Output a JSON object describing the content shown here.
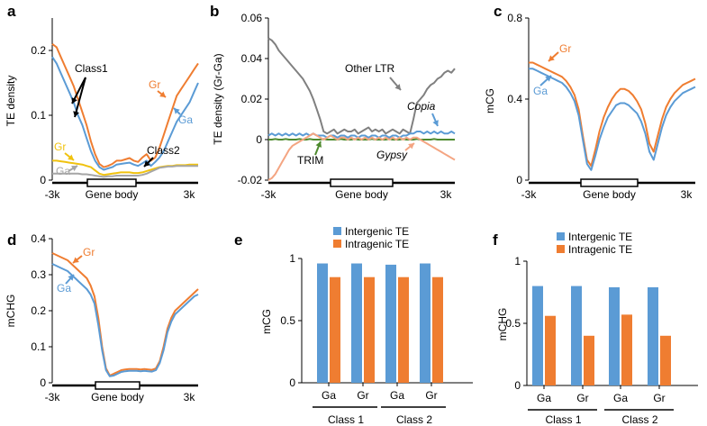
{
  "colors": {
    "gr": "#ef7d31",
    "ga": "#5b9bd5",
    "gr_class2": "#f0c20f",
    "ga_class2": "#a6a6a6",
    "other_ltr": "#808080",
    "copia": "#5b9bd5",
    "trim": "#4e8a2e",
    "gypsy": "#f4a582",
    "intergenic": "#5b9bd5",
    "intragenic": "#ef7d31",
    "axis": "#000000"
  },
  "chart_data": [
    {
      "panel": "a",
      "type": "line",
      "ylabel": "TE density",
      "ylim": [
        0,
        0.25
      ],
      "yticks": [
        "0",
        "0.1",
        "0.2"
      ],
      "ytick_values": [
        0,
        0.1,
        0.2
      ],
      "xlabel_left": "-3k",
      "xlabel_center": "Gene body",
      "xlabel_right": "3k",
      "annotations": [
        "Class1",
        "Class2",
        "Gr",
        "Ga",
        "Gr",
        "Ga"
      ],
      "series": [
        {
          "color_key": "gr",
          "values": [
            0.21,
            0.205,
            0.19,
            0.175,
            0.16,
            0.145,
            0.125,
            0.105,
            0.085,
            0.06,
            0.04,
            0.025,
            0.02,
            0.022,
            0.025,
            0.03,
            0.03,
            0.032,
            0.034,
            0.03,
            0.028,
            0.035,
            0.04,
            0.03,
            0.035,
            0.05,
            0.07,
            0.09,
            0.11,
            0.13,
            0.14,
            0.15,
            0.16,
            0.17,
            0.18
          ]
        },
        {
          "color_key": "ga",
          "values": [
            0.19,
            0.18,
            0.165,
            0.15,
            0.135,
            0.12,
            0.1,
            0.085,
            0.065,
            0.045,
            0.03,
            0.02,
            0.016,
            0.018,
            0.02,
            0.024,
            0.025,
            0.026,
            0.027,
            0.024,
            0.022,
            0.026,
            0.03,
            0.022,
            0.028,
            0.035,
            0.045,
            0.06,
            0.075,
            0.09,
            0.1,
            0.11,
            0.12,
            0.135,
            0.15
          ]
        },
        {
          "color_key": "gr_class2",
          "values": [
            0.03,
            0.03,
            0.029,
            0.028,
            0.027,
            0.026,
            0.025,
            0.024,
            0.022,
            0.02,
            0.015,
            0.01,
            0.008,
            0.009,
            0.01,
            0.011,
            0.012,
            0.012,
            0.012,
            0.011,
            0.011,
            0.012,
            0.014,
            0.016,
            0.018,
            0.02,
            0.021,
            0.022,
            0.022,
            0.023,
            0.023,
            0.023,
            0.024,
            0.024,
            0.024
          ]
        },
        {
          "color_key": "ga_class2",
          "values": [
            0.01,
            0.01,
            0.01,
            0.01,
            0.01,
            0.01,
            0.01,
            0.009,
            0.009,
            0.008,
            0.007,
            0.006,
            0.005,
            0.006,
            0.006,
            0.007,
            0.007,
            0.007,
            0.007,
            0.007,
            0.007,
            0.008,
            0.01,
            0.013,
            0.016,
            0.019,
            0.02,
            0.021,
            0.021,
            0.022,
            0.022,
            0.022,
            0.022,
            0.022,
            0.022
          ]
        }
      ]
    },
    {
      "panel": "b",
      "type": "line",
      "ylabel": "TE density (Gr-Ga)",
      "ylim": [
        -0.02,
        0.06
      ],
      "yticks": [
        "-0.02",
        "0",
        "0.02",
        "0.04",
        "0.06"
      ],
      "ytick_values": [
        -0.02,
        0,
        0.02,
        0.04,
        0.06
      ],
      "xlabel_left": "-3k",
      "xlabel_center": "Gene body",
      "xlabel_right": "3k",
      "annotations": [
        "Other LTR",
        "Copia",
        "TRIM",
        "Gypsy"
      ],
      "series": [
        {
          "color_key": "other_ltr",
          "values": [
            0.05,
            0.049,
            0.047,
            0.044,
            0.042,
            0.04,
            0.038,
            0.036,
            0.034,
            0.032,
            0.03,
            0.027,
            0.024,
            0.02,
            0.015,
            0.01,
            0.004,
            0.003,
            0.004,
            0.005,
            0.003,
            0.004,
            0.005,
            0.004,
            0.004,
            0.005,
            0.003,
            0.004,
            0.005,
            0.006,
            0.004,
            0.005,
            0.004,
            0.005,
            0.003,
            0.004,
            0.005,
            0.004,
            0.003,
            0.005,
            0.004,
            0.003,
            0.01,
            0.018,
            0.02,
            0.022,
            0.025,
            0.027,
            0.028,
            0.03,
            0.031,
            0.033,
            0.034,
            0.033,
            0.035
          ]
        },
        {
          "color_key": "copia",
          "values": [
            0.002,
            0.003,
            0.002,
            0.003,
            0.002,
            0.003,
            0.002,
            0.003,
            0.002,
            0.003,
            0.002,
            0.003,
            0.002,
            0.003,
            0.002,
            0.002,
            0.002,
            0.001,
            0.002,
            0.002,
            0.001,
            0.002,
            0.002,
            0.001,
            0.002,
            0.002,
            0.001,
            0.002,
            0.002,
            0.001,
            0.002,
            0.002,
            0.001,
            0.002,
            0.002,
            0.001,
            0.002,
            0.002,
            0.001,
            0.002,
            0.002,
            0.003,
            0.003,
            0.004,
            0.004,
            0.003,
            0.004,
            0.003,
            0.004,
            0.003,
            0.004,
            0.003,
            0.003,
            0.004,
            0.003
          ]
        },
        {
          "color_key": "trim",
          "values": [
            0,
            0,
            0.0003,
            0,
            0,
            0.0003,
            0,
            0,
            0,
            0.0003,
            0,
            0,
            0.0003,
            0,
            0,
            0,
            0.0003,
            0,
            0,
            0,
            0,
            0.0003,
            0,
            0,
            0,
            0.0003,
            0,
            0,
            0,
            0,
            0.0003,
            0,
            0,
            0,
            0,
            0.0003,
            0,
            0,
            0,
            0.0003,
            0,
            0,
            0,
            0.0003,
            0,
            0,
            0,
            0,
            0.0003,
            0,
            0,
            0,
            0,
            0,
            0
          ]
        },
        {
          "color_key": "gypsy",
          "values": [
            -0.02,
            -0.019,
            -0.017,
            -0.014,
            -0.011,
            -0.008,
            -0.005,
            -0.003,
            -0.002,
            -0.001,
            0,
            0.001,
            0.002,
            0.003,
            0.002,
            0.001,
            0,
            0.001,
            0.002,
            0.001,
            0,
            0.001,
            0.001,
            0,
            0.001,
            0,
            0.001,
            0,
            0.001,
            0,
            0.001,
            0,
            0.001,
            0,
            0.001,
            0,
            0.001,
            0,
            0.001,
            0,
            0.001,
            0,
            0.001,
            0.001,
            0,
            -0.001,
            -0.002,
            -0.003,
            -0.004,
            -0.005,
            -0.006,
            -0.007,
            -0.008,
            -0.009,
            -0.01
          ]
        }
      ]
    },
    {
      "panel": "c",
      "type": "line",
      "ylabel": "mCG",
      "ylim": [
        0,
        0.8
      ],
      "yticks": [
        "0",
        "0.4",
        "0.8"
      ],
      "ytick_values": [
        0,
        0.4,
        0.8
      ],
      "xlabel_left": "-3k",
      "xlabel_center": "Gene body",
      "xlabel_right": "3k",
      "annotations": [
        "Gr",
        "Ga"
      ],
      "series": [
        {
          "color_key": "gr",
          "values": [
            0.58,
            0.58,
            0.57,
            0.56,
            0.55,
            0.54,
            0.53,
            0.52,
            0.51,
            0.49,
            0.46,
            0.42,
            0.35,
            0.22,
            0.1,
            0.07,
            0.15,
            0.24,
            0.31,
            0.36,
            0.4,
            0.43,
            0.45,
            0.45,
            0.44,
            0.42,
            0.39,
            0.35,
            0.28,
            0.18,
            0.14,
            0.22,
            0.3,
            0.36,
            0.4,
            0.43,
            0.45,
            0.47,
            0.48,
            0.49,
            0.5
          ]
        },
        {
          "color_key": "ga",
          "values": [
            0.55,
            0.55,
            0.54,
            0.53,
            0.52,
            0.51,
            0.5,
            0.49,
            0.48,
            0.46,
            0.43,
            0.39,
            0.32,
            0.2,
            0.08,
            0.05,
            0.12,
            0.2,
            0.26,
            0.31,
            0.34,
            0.37,
            0.38,
            0.38,
            0.37,
            0.35,
            0.33,
            0.29,
            0.23,
            0.14,
            0.1,
            0.18,
            0.26,
            0.32,
            0.36,
            0.39,
            0.41,
            0.43,
            0.44,
            0.45,
            0.46
          ]
        }
      ]
    },
    {
      "panel": "d",
      "type": "line",
      "ylabel": "mCHG",
      "ylim": [
        0,
        0.4
      ],
      "yticks": [
        "0",
        "0.1",
        "0.2",
        "0.3",
        "0.4"
      ],
      "ytick_values": [
        0,
        0.1,
        0.2,
        0.3,
        0.4
      ],
      "xlabel_left": "-3k",
      "xlabel_center": "Gene body",
      "xlabel_right": "3k",
      "annotations": [
        "Gr",
        "Ga"
      ],
      "series": [
        {
          "color_key": "gr",
          "values": [
            0.36,
            0.355,
            0.35,
            0.345,
            0.34,
            0.33,
            0.32,
            0.31,
            0.3,
            0.29,
            0.27,
            0.24,
            0.18,
            0.1,
            0.04,
            0.02,
            0.025,
            0.03,
            0.035,
            0.037,
            0.038,
            0.038,
            0.038,
            0.037,
            0.038,
            0.037,
            0.036,
            0.04,
            0.06,
            0.1,
            0.15,
            0.18,
            0.2,
            0.21,
            0.22,
            0.23,
            0.24,
            0.25,
            0.26
          ]
        },
        {
          "color_key": "ga",
          "values": [
            0.33,
            0.325,
            0.32,
            0.315,
            0.31,
            0.3,
            0.29,
            0.28,
            0.27,
            0.26,
            0.245,
            0.22,
            0.16,
            0.09,
            0.035,
            0.018,
            0.02,
            0.025,
            0.03,
            0.032,
            0.033,
            0.033,
            0.033,
            0.032,
            0.033,
            0.032,
            0.031,
            0.035,
            0.055,
            0.09,
            0.14,
            0.17,
            0.19,
            0.2,
            0.21,
            0.22,
            0.23,
            0.24,
            0.245
          ]
        }
      ]
    },
    {
      "panel": "e",
      "type": "bar",
      "ylabel": "mCG",
      "ylim": [
        0,
        1
      ],
      "yticks": [
        "0",
        "0.5",
        "1"
      ],
      "ytick_values": [
        0,
        0.5,
        1
      ],
      "categories": [
        "Ga",
        "Gr",
        "Ga",
        "Gr"
      ],
      "groups": [
        "Class 1",
        "Class 2"
      ],
      "series": [
        {
          "name": "Intergenic TE",
          "color_key": "intergenic",
          "values": [
            0.96,
            0.96,
            0.95,
            0.96
          ]
        },
        {
          "name": "Intragenic TE",
          "color_key": "intragenic",
          "values": [
            0.85,
            0.85,
            0.85,
            0.85
          ]
        }
      ]
    },
    {
      "panel": "f",
      "type": "bar",
      "ylabel": "mCHG",
      "ylim": [
        0,
        1
      ],
      "yticks": [
        "0",
        "0.5",
        "1"
      ],
      "ytick_values": [
        0,
        0.5,
        1
      ],
      "categories": [
        "Ga",
        "Gr",
        "Ga",
        "Gr"
      ],
      "groups": [
        "Class 1",
        "Class 2"
      ],
      "series": [
        {
          "name": "Intergenic TE",
          "color_key": "intergenic",
          "values": [
            0.8,
            0.8,
            0.79,
            0.79
          ]
        },
        {
          "name": "Intragenic TE",
          "color_key": "intragenic",
          "values": [
            0.56,
            0.4,
            0.57,
            0.4
          ]
        }
      ]
    }
  ]
}
